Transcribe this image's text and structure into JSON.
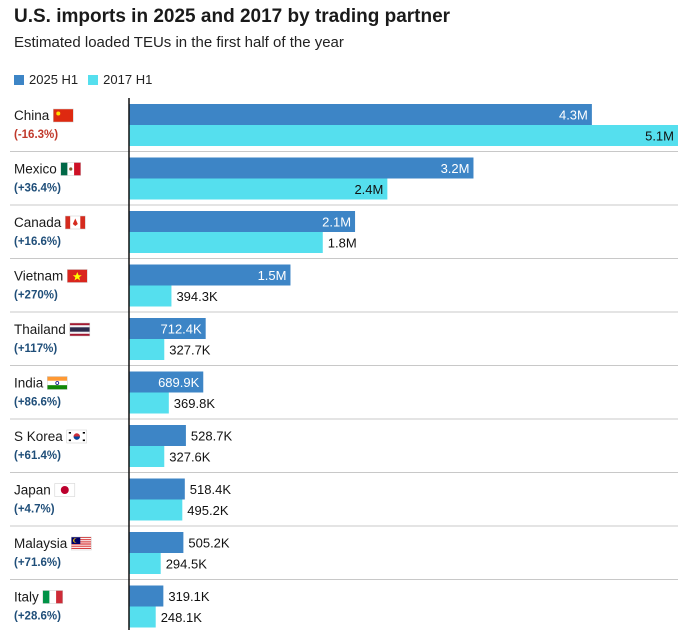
{
  "title": "U.S. imports in 2025 and 2017 by trading partner",
  "subtitle": "Estimated loaded TEUs in the first half of the year",
  "colors": {
    "series2025": "#3d85c6",
    "series2017": "#55dfee",
    "negative": "#c0392b",
    "positive": "#1f4e79",
    "grid": "#c8c8c8",
    "axis": "#111111"
  },
  "chart_data": {
    "type": "bar",
    "orientation": "horizontal",
    "title": "U.S. imports in 2025 and 2017 by trading partner",
    "subtitle": "Estimated loaded TEUs in the first half of the year",
    "xlim": [
      0,
      5100000
    ],
    "legend": [
      "2025 H1",
      "2017 H1"
    ],
    "categories": [
      {
        "name": "China",
        "change": "(-16.3%)",
        "flag": "china-flag-icon"
      },
      {
        "name": "Mexico",
        "change": "(+36.4%)",
        "flag": "mexico-flag-icon"
      },
      {
        "name": "Canada",
        "change": "(+16.6%)",
        "flag": "canada-flag-icon"
      },
      {
        "name": "Vietnam",
        "change": "(+270%)",
        "flag": "vietnam-flag-icon"
      },
      {
        "name": "Thailand",
        "change": "(+117%)",
        "flag": "thailand-flag-icon"
      },
      {
        "name": "India",
        "change": "(+86.6%)",
        "flag": "india-flag-icon"
      },
      {
        "name": "S Korea",
        "change": "(+61.4%)",
        "flag": "south-korea-flag-icon"
      },
      {
        "name": "Japan",
        "change": "(+4.7%)",
        "flag": "japan-flag-icon"
      },
      {
        "name": "Malaysia",
        "change": "(+71.6%)",
        "flag": "malaysia-flag-icon"
      },
      {
        "name": "Italy",
        "change": "(+28.6%)",
        "flag": "italy-flag-icon"
      }
    ],
    "series": [
      {
        "name": "2025 H1",
        "values": [
          4300000,
          3200000,
          2100000,
          1500000,
          712400,
          689900,
          528700,
          518400,
          505200,
          319100
        ],
        "labels": [
          "4.3M",
          "3.2M",
          "2.1M",
          "1.5M",
          "712.4K",
          "689.9K",
          "528.7K",
          "518.4K",
          "505.2K",
          "319.1K"
        ]
      },
      {
        "name": "2017 H1",
        "values": [
          5100000,
          2400000,
          1800000,
          394300,
          327700,
          369800,
          327600,
          495200,
          294500,
          248100
        ],
        "labels": [
          "5.1M",
          "2.4M",
          "1.8M",
          "394.3K",
          "327.7K",
          "369.8K",
          "327.6K",
          "495.2K",
          "294.5K",
          "248.1K"
        ]
      }
    ]
  }
}
